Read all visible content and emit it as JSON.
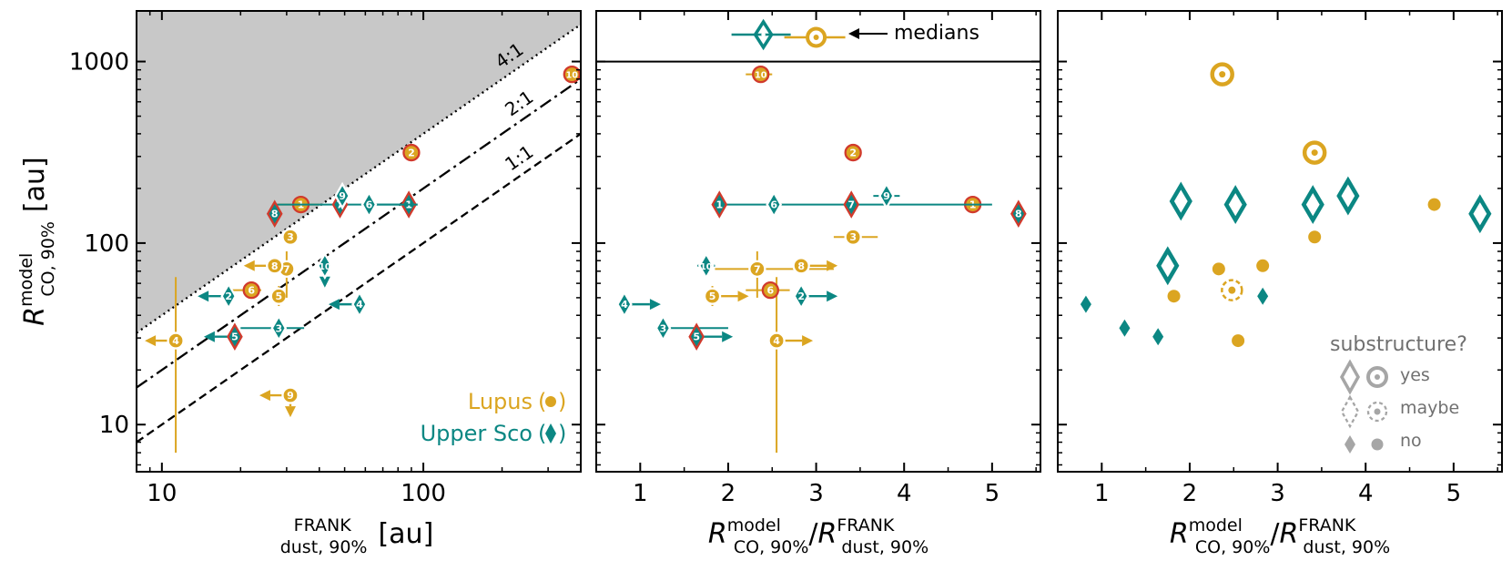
{
  "colors": {
    "lupus": "#dba521",
    "usco": "#0b8783",
    "ring": "#d13a2c",
    "shade": "#c8c8c8",
    "legend_grey": "#a6a6a6",
    "legend_text": "#707070"
  },
  "labels": {
    "ylabel_main": "R",
    "ylabel_sup": "model",
    "ylabel_sub": "CO, 90%",
    "ylabel_unit": "[au]",
    "p1_xlabel_main": "R",
    "p1_xlabel_sup": "FRANK",
    "p1_xlabel_sub": "dust, 90%",
    "p1_xlabel_unit": "[au]",
    "ratio_num": "R",
    "ratio_num_sup": "model",
    "ratio_num_sub": "CO, 90%",
    "ratio_den": "R",
    "ratio_den_sup": "FRANK",
    "ratio_den_sub": "dust, 90%",
    "lupus_legend": "Lupus",
    "usco_legend": "Upper Sco",
    "medians": "medians",
    "substructure_title": "substructure?",
    "sub_yes": "yes",
    "sub_maybe": "maybe",
    "sub_no": "no",
    "line_4_1": "4:1",
    "line_2_1": "2:1",
    "line_1_1": "1:1",
    "p1_xticks": [
      "10",
      "100"
    ],
    "yticks": [
      "10",
      "100",
      "1000"
    ],
    "ratio_xticks": [
      "1",
      "2",
      "3",
      "4",
      "5"
    ]
  },
  "chart_data": [
    {
      "type": "scatter",
      "panel": "left",
      "x_scale": "log",
      "y_scale": "log",
      "xlim": [
        8,
        400
      ],
      "ylim": [
        5.5,
        1900
      ],
      "shaded_region": "above 4:1 line",
      "ratio_lines": [
        {
          "label": "4:1",
          "ratio": 4,
          "style": "dotted"
        },
        {
          "label": "2:1",
          "ratio": 2,
          "style": "dashdot"
        },
        {
          "label": "1:1",
          "ratio": 1,
          "style": "dashed"
        }
      ],
      "series": [
        {
          "name": "Lupus",
          "marker": "circle",
          "points": [
            {
              "id": "1",
              "x": 34,
              "y": 163,
              "sub": "yes",
              "xerr": [
                28,
                40
              ]
            },
            {
              "id": "2",
              "x": 90,
              "y": 315,
              "sub": "yes"
            },
            {
              "id": "3",
              "x": 31,
              "y": 108,
              "sub": "no"
            },
            {
              "id": "4",
              "x": 11.3,
              "y": 29,
              "sub": "no",
              "xupper": true,
              "yerr": [
                7,
                65
              ]
            },
            {
              "id": "5",
              "x": 28,
              "y": 51,
              "sub": "no",
              "yerr": [
                45,
                58
              ]
            },
            {
              "id": "6",
              "x": 22,
              "y": 55,
              "sub": "yes",
              "xerr": [
                18,
                24
              ]
            },
            {
              "id": "7",
              "x": 30,
              "y": 72,
              "sub": "no",
              "yerr": [
                50,
                90
              ]
            },
            {
              "id": "8",
              "x": 27,
              "y": 75,
              "sub": "no",
              "xupper": true
            },
            {
              "id": "9",
              "x": 31,
              "y": 14.5,
              "sub": "no",
              "xupper": true,
              "yupper": true
            },
            {
              "id": "10",
              "x": 370,
              "y": 850,
              "sub": "yes"
            }
          ]
        },
        {
          "name": "Upper Sco",
          "marker": "diamond",
          "points": [
            {
              "id": "1",
              "x": 88,
              "y": 163,
              "sub": "yes",
              "xerr": [
                60,
                95
              ]
            },
            {
              "id": "2",
              "x": 18,
              "y": 51,
              "sub": "no",
              "xupper": true,
              "yerr": [
                45,
                58
              ]
            },
            {
              "id": "3",
              "x": 28,
              "y": 34,
              "sub": "no",
              "xerr": [
                20,
                35
              ]
            },
            {
              "id": "4",
              "x": 57,
              "y": 46,
              "sub": "no",
              "xupper": true
            },
            {
              "id": "5",
              "x": 19,
              "y": 30.5,
              "sub": "yes",
              "xupper": true
            },
            {
              "id": "6",
              "x": 62,
              "y": 163,
              "sub": "no",
              "xerr": [
                27,
                95
              ]
            },
            {
              "id": "7",
              "x": 48,
              "y": 163,
              "sub": "yes"
            },
            {
              "id": "8",
              "x": 27,
              "y": 145,
              "sub": "yes"
            },
            {
              "id": "9",
              "x": 49,
              "y": 182,
              "sub": "no"
            },
            {
              "id": "10",
              "x": 42,
              "y": 75,
              "sub": "maybe",
              "yupper": true
            }
          ]
        }
      ]
    },
    {
      "type": "scatter",
      "panel": "middle",
      "y_scale": "log",
      "xlim": [
        0.5,
        5.55
      ],
      "ylim": [
        5.5,
        1900
      ],
      "medians": {
        "Upper Sco": 2.4,
        "Lupus": 3.0
      },
      "series": [
        {
          "name": "Lupus",
          "marker": "circle",
          "points": [
            {
              "id": "1",
              "x": 4.78,
              "y": 163,
              "sub": "yes"
            },
            {
              "id": "2",
              "x": 3.42,
              "y": 315,
              "sub": "yes"
            },
            {
              "id": "3",
              "x": 3.42,
              "y": 108,
              "sub": "no",
              "xerr": [
                3.2,
                3.7
              ]
            },
            {
              "id": "4",
              "x": 2.55,
              "y": 29,
              "sub": "no",
              "xlower": true,
              "yerr": [
                7,
                65
              ]
            },
            {
              "id": "5",
              "x": 1.82,
              "y": 51,
              "sub": "no",
              "xlower": true,
              "yerr": [
                45,
                58
              ]
            },
            {
              "id": "6",
              "x": 2.48,
              "y": 55,
              "sub": "yes",
              "xerr": [
                2.2,
                2.7
              ]
            },
            {
              "id": "7",
              "x": 2.33,
              "y": 72,
              "sub": "no",
              "xerr": [
                1.85,
                3.2
              ],
              "yerr": [
                50,
                90
              ]
            },
            {
              "id": "8",
              "x": 2.83,
              "y": 75,
              "sub": "no",
              "xlower": true
            },
            {
              "id": "10",
              "x": 2.37,
              "y": 850,
              "sub": "yes",
              "xerr": [
                2.2,
                2.5
              ]
            }
          ]
        },
        {
          "name": "Upper Sco",
          "marker": "diamond",
          "points": [
            {
              "id": "1",
              "x": 1.9,
              "y": 163,
              "sub": "yes",
              "xerr": [
                1.85,
                5.0
              ]
            },
            {
              "id": "2",
              "x": 2.83,
              "y": 51,
              "sub": "no",
              "xlower": true,
              "yerr": [
                45,
                58
              ]
            },
            {
              "id": "3",
              "x": 1.26,
              "y": 34,
              "sub": "no",
              "xerr": [
                1.2,
                2.0
              ]
            },
            {
              "id": "4",
              "x": 0.82,
              "y": 46,
              "sub": "no",
              "xlower": true
            },
            {
              "id": "5",
              "x": 1.64,
              "y": 30.5,
              "sub": "yes",
              "xlower": true
            },
            {
              "id": "6",
              "x": 2.52,
              "y": 163,
              "sub": "no"
            },
            {
              "id": "7",
              "x": 3.4,
              "y": 163,
              "sub": "yes"
            },
            {
              "id": "8",
              "x": 5.3,
              "y": 145,
              "sub": "yes"
            },
            {
              "id": "9",
              "x": 3.8,
              "y": 182,
              "sub": "no",
              "xerr": [
                3.65,
                3.95
              ]
            },
            {
              "id": "10",
              "x": 1.75,
              "y": 75,
              "sub": "maybe",
              "xerr": [
                1.65,
                1.85
              ]
            }
          ]
        }
      ]
    },
    {
      "type": "scatter",
      "panel": "right",
      "y_scale": "log",
      "xlim": [
        0.5,
        5.55
      ],
      "ylim": [
        5.5,
        1900
      ],
      "legend": {
        "title": "substructure?",
        "entries": [
          "yes",
          "maybe",
          "no"
        ]
      },
      "series": [
        {
          "name": "Lupus",
          "marker": "circle",
          "points": [
            {
              "x": 2.37,
              "y": 850,
              "sub": "yes"
            },
            {
              "x": 3.42,
              "y": 315,
              "sub": "yes"
            },
            {
              "x": 4.78,
              "y": 163,
              "sub": "no"
            },
            {
              "x": 3.42,
              "y": 108,
              "sub": "no"
            },
            {
              "x": 2.83,
              "y": 75,
              "sub": "no"
            },
            {
              "x": 2.33,
              "y": 72,
              "sub": "no"
            },
            {
              "x": 2.48,
              "y": 55,
              "sub": "maybe"
            },
            {
              "x": 1.82,
              "y": 51,
              "sub": "no"
            },
            {
              "x": 2.55,
              "y": 29,
              "sub": "no"
            }
          ]
        },
        {
          "name": "Upper Sco",
          "marker": "diamond",
          "points": [
            {
              "x": 3.8,
              "y": 182,
              "sub": "yes"
            },
            {
              "x": 1.9,
              "y": 170,
              "sub": "yes"
            },
            {
              "x": 2.52,
              "y": 163,
              "sub": "yes"
            },
            {
              "x": 3.4,
              "y": 163,
              "sub": "yes"
            },
            {
              "x": 5.3,
              "y": 145,
              "sub": "yes"
            },
            {
              "x": 1.75,
              "y": 75,
              "sub": "yes"
            },
            {
              "x": 2.83,
              "y": 51,
              "sub": "no"
            },
            {
              "x": 0.82,
              "y": 46,
              "sub": "no"
            },
            {
              "x": 1.26,
              "y": 34,
              "sub": "no"
            },
            {
              "x": 1.64,
              "y": 30.5,
              "sub": "no"
            }
          ]
        }
      ]
    }
  ]
}
